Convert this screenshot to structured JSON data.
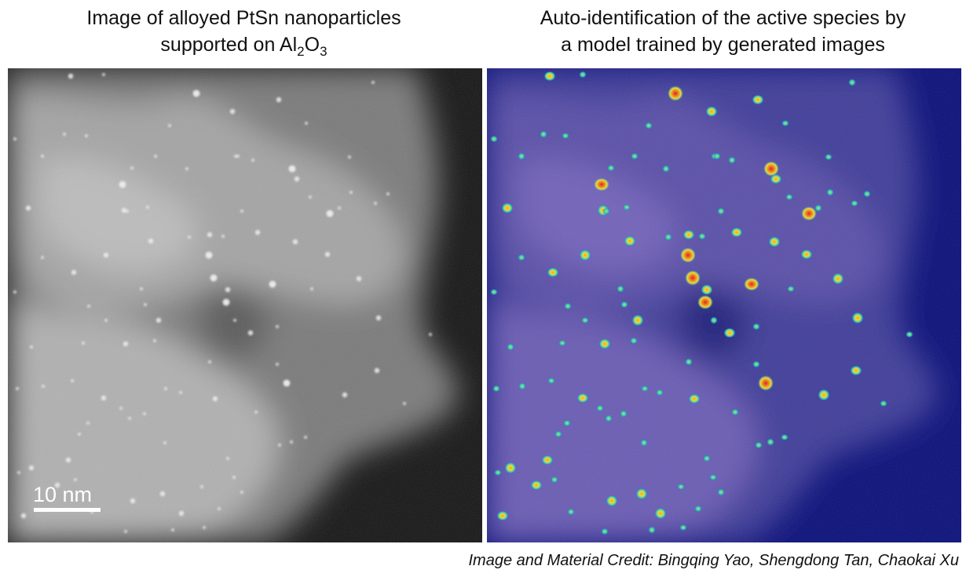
{
  "left_caption": {
    "line1": "Image of alloyed PtSn nanoparticles",
    "line2_prefix": "supported on Al",
    "sub1": "2",
    "mid": "O",
    "sub2": "3"
  },
  "right_caption": {
    "line1": "Auto-identification of the active species by",
    "line2": "a model trained by generated images"
  },
  "scale_bar": {
    "label": "10 nm"
  },
  "credit": "Image and Material Credit: Bingqing Yao, Shengdong Tan, Chaokai Xu",
  "colors": {
    "left_background": "#141414",
    "left_support": "#8c8c8c",
    "particle_bright": "#f0f0f0",
    "right_background": "#0a0f7a",
    "right_support": "#5a4fa8",
    "heat_low": "#2ec6c0",
    "heat_mid": "#e8dc3a",
    "heat_high": "#d62a1a"
  },
  "icons": {
    "left_image": "grayscale-stem-micrograph",
    "right_image": "heatmap-overlay-micrograph"
  }
}
